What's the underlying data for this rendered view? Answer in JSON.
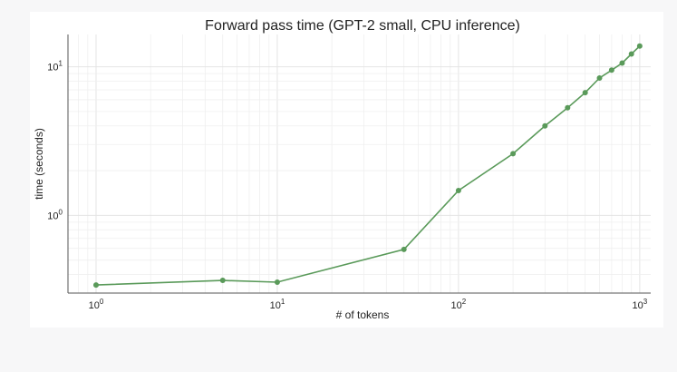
{
  "chart_data": {
    "type": "line",
    "title": "Forward pass time (GPT-2 small, CPU inference)",
    "xlabel": "# of tokens",
    "ylabel": "time (seconds)",
    "xscale": "log",
    "yscale": "log",
    "xlim": [
      0.7,
      1150
    ],
    "ylim": [
      0.3,
      16.5
    ],
    "grid": true,
    "x_ticks": [
      {
        "value": 1,
        "base": "10",
        "exp": "0"
      },
      {
        "value": 10,
        "base": "10",
        "exp": "1"
      },
      {
        "value": 100,
        "base": "10",
        "exp": "2"
      },
      {
        "value": 1000,
        "base": "10",
        "exp": "3"
      }
    ],
    "y_ticks": [
      {
        "value": 1,
        "base": "10",
        "exp": "0"
      },
      {
        "value": 10,
        "base": "10",
        "exp": "1"
      }
    ],
    "series": [
      {
        "name": "forward pass time",
        "color": "#5a9a5a",
        "x": [
          1,
          5,
          10,
          50,
          100,
          200,
          300,
          400,
          500,
          600,
          700,
          800,
          900,
          1000
        ],
        "y": [
          0.34,
          0.365,
          0.355,
          0.59,
          1.47,
          2.6,
          4.0,
          5.3,
          6.7,
          8.4,
          9.5,
          10.6,
          12.2,
          13.8
        ]
      }
    ]
  }
}
